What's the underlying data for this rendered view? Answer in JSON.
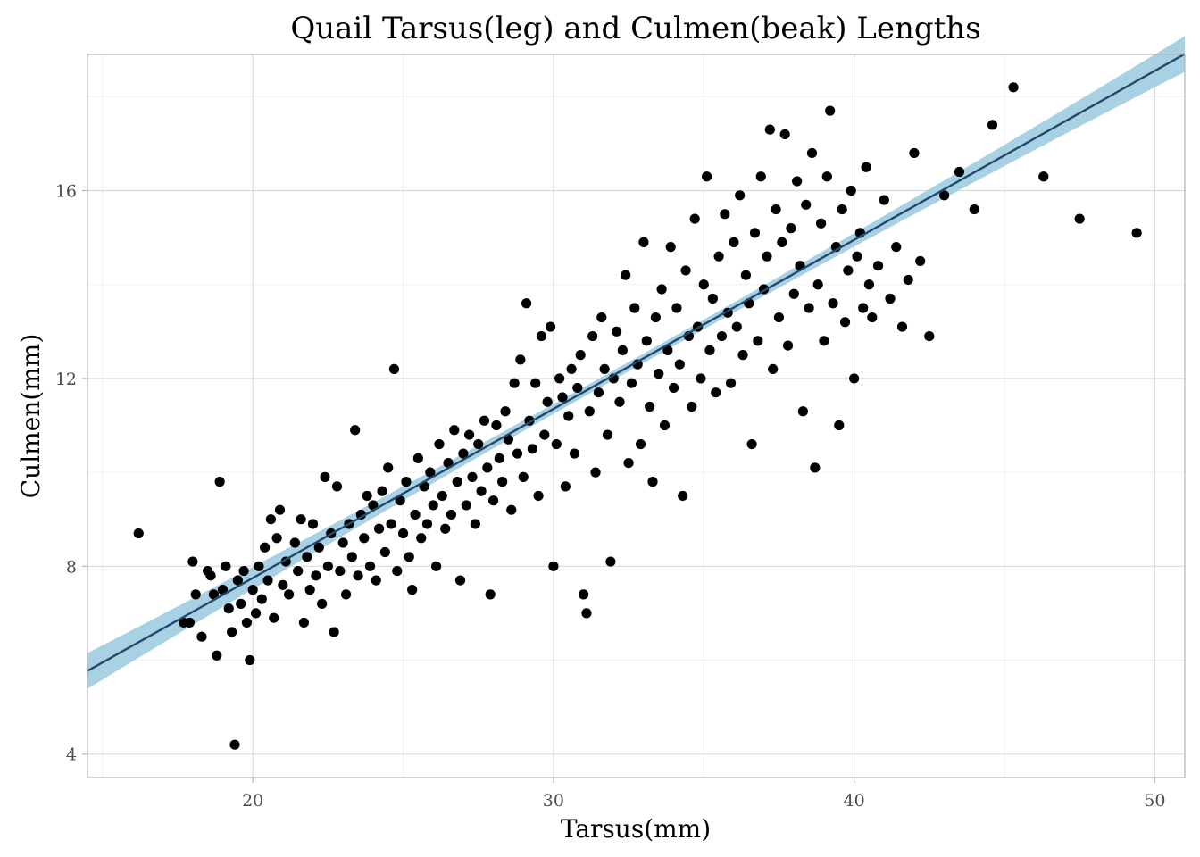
{
  "chart_data": {
    "type": "scatter",
    "title": "Quail Tarsus(leg) and Culmen(beak) Lengths",
    "xlabel": "Tarsus(mm)",
    "ylabel": "Culmen(mm)",
    "xlim": [
      14.5,
      51
    ],
    "ylim": [
      3.5,
      18.9
    ],
    "x_ticks": [
      20,
      30,
      40,
      50
    ],
    "y_ticks": [
      4,
      8,
      12,
      16
    ],
    "x_tick_labels": [
      "20",
      "30",
      "40",
      "50"
    ],
    "y_tick_labels": [
      "4",
      "8",
      "12",
      "16"
    ],
    "grid": true,
    "legend": "none",
    "colors": {
      "points": "#000000",
      "fit_line": "#234a6e",
      "confidence_band": "#9fcde0",
      "grid_major": "#d9d9d9",
      "grid_minor": "#f0f0f0",
      "panel_border": "#b3b3b3"
    },
    "fit": {
      "type": "linear",
      "slope": 0.36,
      "intercept": 0.55,
      "band_halfwidth_at_center": 0.1,
      "band_halfwidth_at_edges": 0.38
    },
    "series": [
      {
        "points": [
          [
            16.2,
            8.7
          ],
          [
            17.7,
            6.8
          ],
          [
            17.9,
            6.8
          ],
          [
            18.0,
            8.1
          ],
          [
            18.1,
            7.4
          ],
          [
            18.3,
            6.5
          ],
          [
            18.5,
            7.9
          ],
          [
            18.6,
            7.8
          ],
          [
            18.7,
            7.4
          ],
          [
            18.8,
            6.1
          ],
          [
            18.9,
            9.8
          ],
          [
            19.0,
            7.5
          ],
          [
            19.1,
            8.0
          ],
          [
            19.2,
            7.1
          ],
          [
            19.3,
            6.6
          ],
          [
            19.4,
            4.2
          ],
          [
            19.5,
            7.7
          ],
          [
            19.6,
            7.2
          ],
          [
            19.7,
            7.9
          ],
          [
            19.8,
            6.8
          ],
          [
            19.9,
            6.0
          ],
          [
            20.0,
            7.5
          ],
          [
            20.1,
            7.0
          ],
          [
            20.2,
            8.0
          ],
          [
            20.3,
            7.3
          ],
          [
            20.4,
            8.4
          ],
          [
            20.5,
            7.7
          ],
          [
            20.6,
            9.0
          ],
          [
            20.7,
            6.9
          ],
          [
            20.8,
            8.6
          ],
          [
            20.9,
            9.2
          ],
          [
            21.0,
            7.6
          ],
          [
            21.1,
            8.1
          ],
          [
            21.2,
            7.4
          ],
          [
            21.4,
            8.5
          ],
          [
            21.5,
            7.9
          ],
          [
            21.6,
            9.0
          ],
          [
            21.7,
            6.8
          ],
          [
            21.8,
            8.2
          ],
          [
            21.9,
            7.5
          ],
          [
            22.0,
            8.9
          ],
          [
            22.1,
            7.8
          ],
          [
            22.2,
            8.4
          ],
          [
            22.3,
            7.2
          ],
          [
            22.4,
            9.9
          ],
          [
            22.5,
            8.0
          ],
          [
            22.6,
            8.7
          ],
          [
            22.7,
            6.6
          ],
          [
            22.8,
            9.7
          ],
          [
            22.9,
            7.9
          ],
          [
            23.0,
            8.5
          ],
          [
            23.1,
            7.4
          ],
          [
            23.2,
            8.9
          ],
          [
            23.3,
            8.2
          ],
          [
            23.4,
            10.9
          ],
          [
            23.5,
            7.8
          ],
          [
            23.6,
            9.1
          ],
          [
            23.7,
            8.6
          ],
          [
            23.8,
            9.5
          ],
          [
            23.9,
            8.0
          ],
          [
            24.0,
            9.3
          ],
          [
            24.1,
            7.7
          ],
          [
            24.2,
            8.8
          ],
          [
            24.3,
            9.6
          ],
          [
            24.4,
            8.3
          ],
          [
            24.5,
            10.1
          ],
          [
            24.6,
            8.9
          ],
          [
            24.7,
            12.2
          ],
          [
            24.8,
            7.9
          ],
          [
            24.9,
            9.4
          ],
          [
            25.0,
            8.7
          ],
          [
            25.1,
            9.8
          ],
          [
            25.2,
            8.2
          ],
          [
            25.3,
            7.5
          ],
          [
            25.4,
            9.1
          ],
          [
            25.5,
            10.3
          ],
          [
            25.6,
            8.6
          ],
          [
            25.7,
            9.7
          ],
          [
            25.8,
            8.9
          ],
          [
            25.9,
            10.0
          ],
          [
            26.0,
            9.3
          ],
          [
            26.1,
            8.0
          ],
          [
            26.2,
            10.6
          ],
          [
            26.3,
            9.5
          ],
          [
            26.4,
            8.8
          ],
          [
            26.5,
            10.2
          ],
          [
            26.6,
            9.1
          ],
          [
            26.7,
            10.9
          ],
          [
            26.8,
            9.8
          ],
          [
            26.9,
            7.7
          ],
          [
            27.0,
            10.4
          ],
          [
            27.1,
            9.3
          ],
          [
            27.2,
            10.8
          ],
          [
            27.3,
            9.9
          ],
          [
            27.4,
            8.9
          ],
          [
            27.5,
            10.6
          ],
          [
            27.6,
            9.6
          ],
          [
            27.7,
            11.1
          ],
          [
            27.8,
            10.1
          ],
          [
            27.9,
            7.4
          ],
          [
            28.0,
            9.4
          ],
          [
            28.1,
            11.0
          ],
          [
            28.2,
            10.3
          ],
          [
            28.3,
            9.8
          ],
          [
            28.4,
            11.3
          ],
          [
            28.5,
            10.7
          ],
          [
            28.6,
            9.2
          ],
          [
            28.7,
            11.9
          ],
          [
            28.8,
            10.4
          ],
          [
            28.9,
            12.4
          ],
          [
            29.0,
            9.9
          ],
          [
            29.1,
            13.6
          ],
          [
            29.2,
            11.1
          ],
          [
            29.3,
            10.5
          ],
          [
            29.4,
            11.9
          ],
          [
            29.5,
            9.5
          ],
          [
            29.6,
            12.9
          ],
          [
            29.7,
            10.8
          ],
          [
            29.8,
            11.5
          ],
          [
            29.9,
            13.1
          ],
          [
            30.0,
            8.0
          ],
          [
            30.1,
            10.6
          ],
          [
            30.2,
            12.0
          ],
          [
            30.3,
            11.6
          ],
          [
            30.4,
            9.7
          ],
          [
            30.5,
            11.2
          ],
          [
            30.6,
            12.2
          ],
          [
            30.7,
            10.4
          ],
          [
            30.8,
            11.8
          ],
          [
            30.9,
            12.5
          ],
          [
            31.0,
            7.4
          ],
          [
            31.1,
            7.0
          ],
          [
            31.2,
            11.3
          ],
          [
            31.3,
            12.9
          ],
          [
            31.4,
            10.0
          ],
          [
            31.5,
            11.7
          ],
          [
            31.6,
            13.3
          ],
          [
            31.7,
            12.2
          ],
          [
            31.8,
            10.8
          ],
          [
            31.9,
            8.1
          ],
          [
            32.0,
            12.0
          ],
          [
            32.1,
            13.0
          ],
          [
            32.2,
            11.5
          ],
          [
            32.3,
            12.6
          ],
          [
            32.4,
            14.2
          ],
          [
            32.5,
            10.2
          ],
          [
            32.6,
            11.9
          ],
          [
            32.7,
            13.5
          ],
          [
            32.8,
            12.3
          ],
          [
            32.9,
            10.6
          ],
          [
            33.0,
            14.9
          ],
          [
            33.1,
            12.8
          ],
          [
            33.2,
            11.4
          ],
          [
            33.3,
            9.8
          ],
          [
            33.4,
            13.3
          ],
          [
            33.5,
            12.1
          ],
          [
            33.6,
            13.9
          ],
          [
            33.7,
            11.0
          ],
          [
            33.8,
            12.6
          ],
          [
            33.9,
            14.8
          ],
          [
            34.0,
            11.8
          ],
          [
            34.1,
            13.5
          ],
          [
            34.2,
            12.3
          ],
          [
            34.3,
            9.5
          ],
          [
            34.4,
            14.3
          ],
          [
            34.5,
            12.9
          ],
          [
            34.6,
            11.4
          ],
          [
            34.7,
            15.4
          ],
          [
            34.8,
            13.1
          ],
          [
            34.9,
            12.0
          ],
          [
            35.0,
            14.0
          ],
          [
            35.1,
            16.3
          ],
          [
            35.2,
            12.6
          ],
          [
            35.3,
            13.7
          ],
          [
            35.4,
            11.7
          ],
          [
            35.5,
            14.6
          ],
          [
            35.6,
            12.9
          ],
          [
            35.7,
            15.5
          ],
          [
            35.8,
            13.4
          ],
          [
            35.9,
            11.9
          ],
          [
            36.0,
            14.9
          ],
          [
            36.1,
            13.1
          ],
          [
            36.2,
            15.9
          ],
          [
            36.3,
            12.5
          ],
          [
            36.4,
            14.2
          ],
          [
            36.5,
            13.6
          ],
          [
            36.6,
            10.6
          ],
          [
            36.7,
            15.1
          ],
          [
            36.8,
            12.8
          ],
          [
            36.9,
            16.3
          ],
          [
            37.0,
            13.9
          ],
          [
            37.1,
            14.6
          ],
          [
            37.2,
            17.3
          ],
          [
            37.3,
            12.2
          ],
          [
            37.4,
            15.6
          ],
          [
            37.5,
            13.3
          ],
          [
            37.6,
            14.9
          ],
          [
            37.7,
            17.2
          ],
          [
            37.8,
            12.7
          ],
          [
            37.9,
            15.2
          ],
          [
            38.0,
            13.8
          ],
          [
            38.1,
            16.2
          ],
          [
            38.2,
            14.4
          ],
          [
            38.3,
            11.3
          ],
          [
            38.4,
            15.7
          ],
          [
            38.5,
            13.5
          ],
          [
            38.6,
            16.8
          ],
          [
            38.7,
            10.1
          ],
          [
            38.8,
            14.0
          ],
          [
            38.9,
            15.3
          ],
          [
            39.0,
            12.8
          ],
          [
            39.1,
            16.3
          ],
          [
            39.2,
            17.7
          ],
          [
            39.3,
            13.6
          ],
          [
            39.4,
            14.8
          ],
          [
            39.5,
            11.0
          ],
          [
            39.6,
            15.6
          ],
          [
            39.7,
            13.2
          ],
          [
            39.8,
            14.3
          ],
          [
            39.9,
            16.0
          ],
          [
            40.0,
            12.0
          ],
          [
            40.1,
            14.6
          ],
          [
            40.2,
            15.1
          ],
          [
            40.3,
            13.5
          ],
          [
            40.4,
            16.5
          ],
          [
            40.5,
            14.0
          ],
          [
            40.6,
            13.3
          ],
          [
            40.8,
            14.4
          ],
          [
            41.0,
            15.8
          ],
          [
            41.2,
            13.7
          ],
          [
            41.4,
            14.8
          ],
          [
            41.6,
            13.1
          ],
          [
            41.8,
            14.1
          ],
          [
            42.0,
            16.8
          ],
          [
            42.2,
            14.5
          ],
          [
            42.5,
            12.9
          ],
          [
            43.0,
            15.9
          ],
          [
            43.5,
            16.4
          ],
          [
            44.0,
            15.6
          ],
          [
            44.6,
            17.4
          ],
          [
            45.3,
            18.2
          ],
          [
            46.3,
            16.3
          ],
          [
            47.5,
            15.4
          ],
          [
            49.4,
            15.1
          ]
        ]
      }
    ]
  }
}
